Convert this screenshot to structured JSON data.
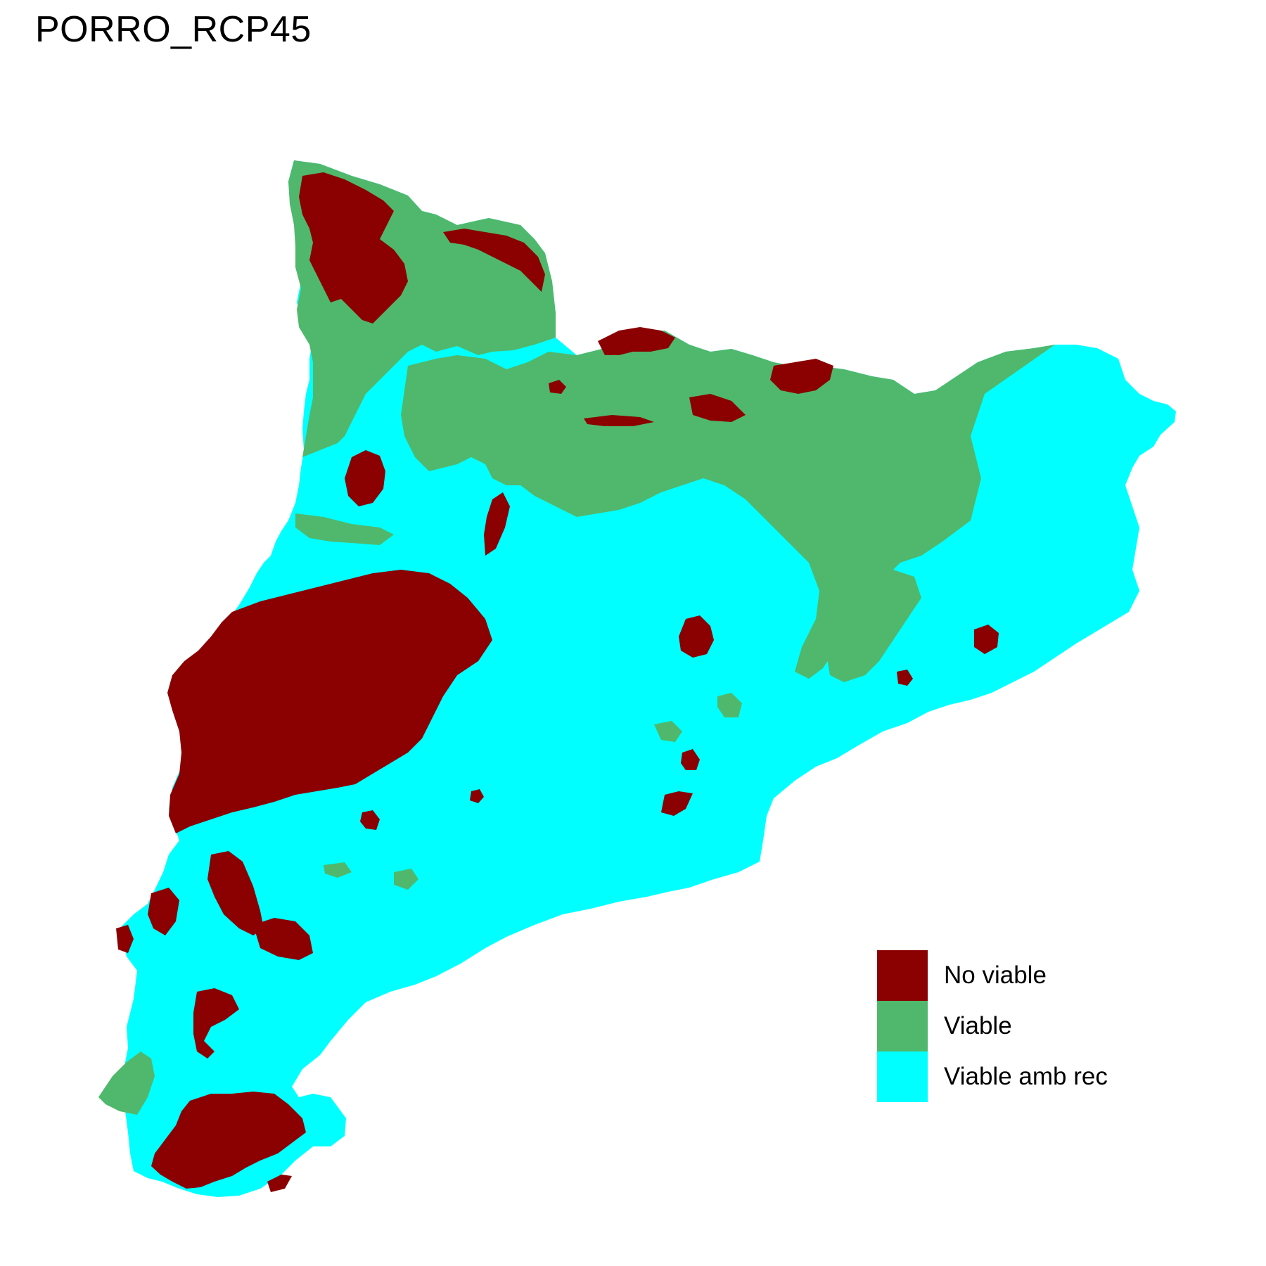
{
  "title": "PORRO_RCP45",
  "legend": {
    "items": [
      {
        "label": "No viable",
        "color": "#8B0000"
      },
      {
        "label": "Viable",
        "color": "#50B86C"
      },
      {
        "label": "Viable amb rec",
        "color": "#00FFFF"
      }
    ]
  },
  "colors": {
    "no_viable": "#8B0000",
    "viable": "#50B86C",
    "viable_amb_rec": "#00FFFF",
    "background": "#FFFFFF"
  }
}
